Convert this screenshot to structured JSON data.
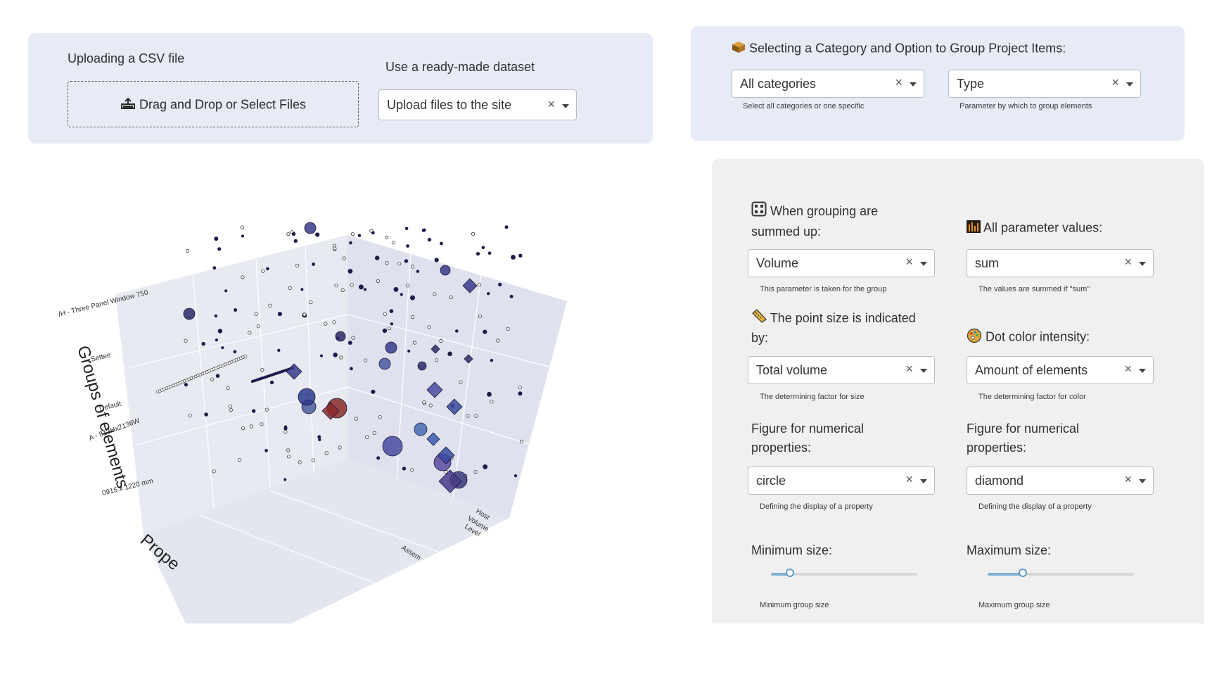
{
  "upload": {
    "csv_label": "Uploading a CSV file",
    "dropzone_text": "Drag and Drop or Select Files",
    "dataset_label": "Use a ready-made dataset",
    "dataset_value": "Upload files to the site",
    "clear_glyph": "×"
  },
  "category": {
    "title": "Selecting a Category and Option to Group Project Items:",
    "icon": "box-icon",
    "category_value": "All categories",
    "category_hint": "Select all categories or one specific",
    "group_value": "Type",
    "group_hint": "Parameter by which to group elements"
  },
  "settings": {
    "sum_label_1": "When grouping are",
    "sum_label_2": "summed up:",
    "sum_value": "Volume",
    "sum_hint": "This parameter is taken for the group",
    "all_values_label": "All parameter values:",
    "all_values_value": "sum",
    "all_values_hint": "The values are summed if \"sum\"",
    "size_label_1": "The point size is indicated",
    "size_label_2": "by:",
    "size_value": "Total volume",
    "size_hint": "The determining factor for size",
    "color_label": "Dot color intensity:",
    "color_value": "Amount of elements",
    "color_hint": "The determining factor for color",
    "figure_label_1": "Figure for numerical",
    "figure_label_2": "properties:",
    "figure_left_value": "circle",
    "figure_right_value": "diamond",
    "figure_hint": "Defining the display of a property",
    "min_label": "Minimum size:",
    "min_hint": "Minimum group size",
    "max_label": "Maximum size:",
    "max_hint": "Maximum group size",
    "min_level": 0.13,
    "max_level": 0.24
  },
  "plot": {
    "yaxis_title": "Groups of elements",
    "xaxis_title_visible": "Prope",
    "y_ticks": [
      "/H - Three Panel Window 750",
      "Settee",
      "Default",
      "A - 813Hx2136W",
      "0915 x 1220 mm"
    ],
    "z_ticks": [
      "Host",
      "Volume",
      "Level"
    ],
    "x_tick_partial": "Assem"
  }
}
